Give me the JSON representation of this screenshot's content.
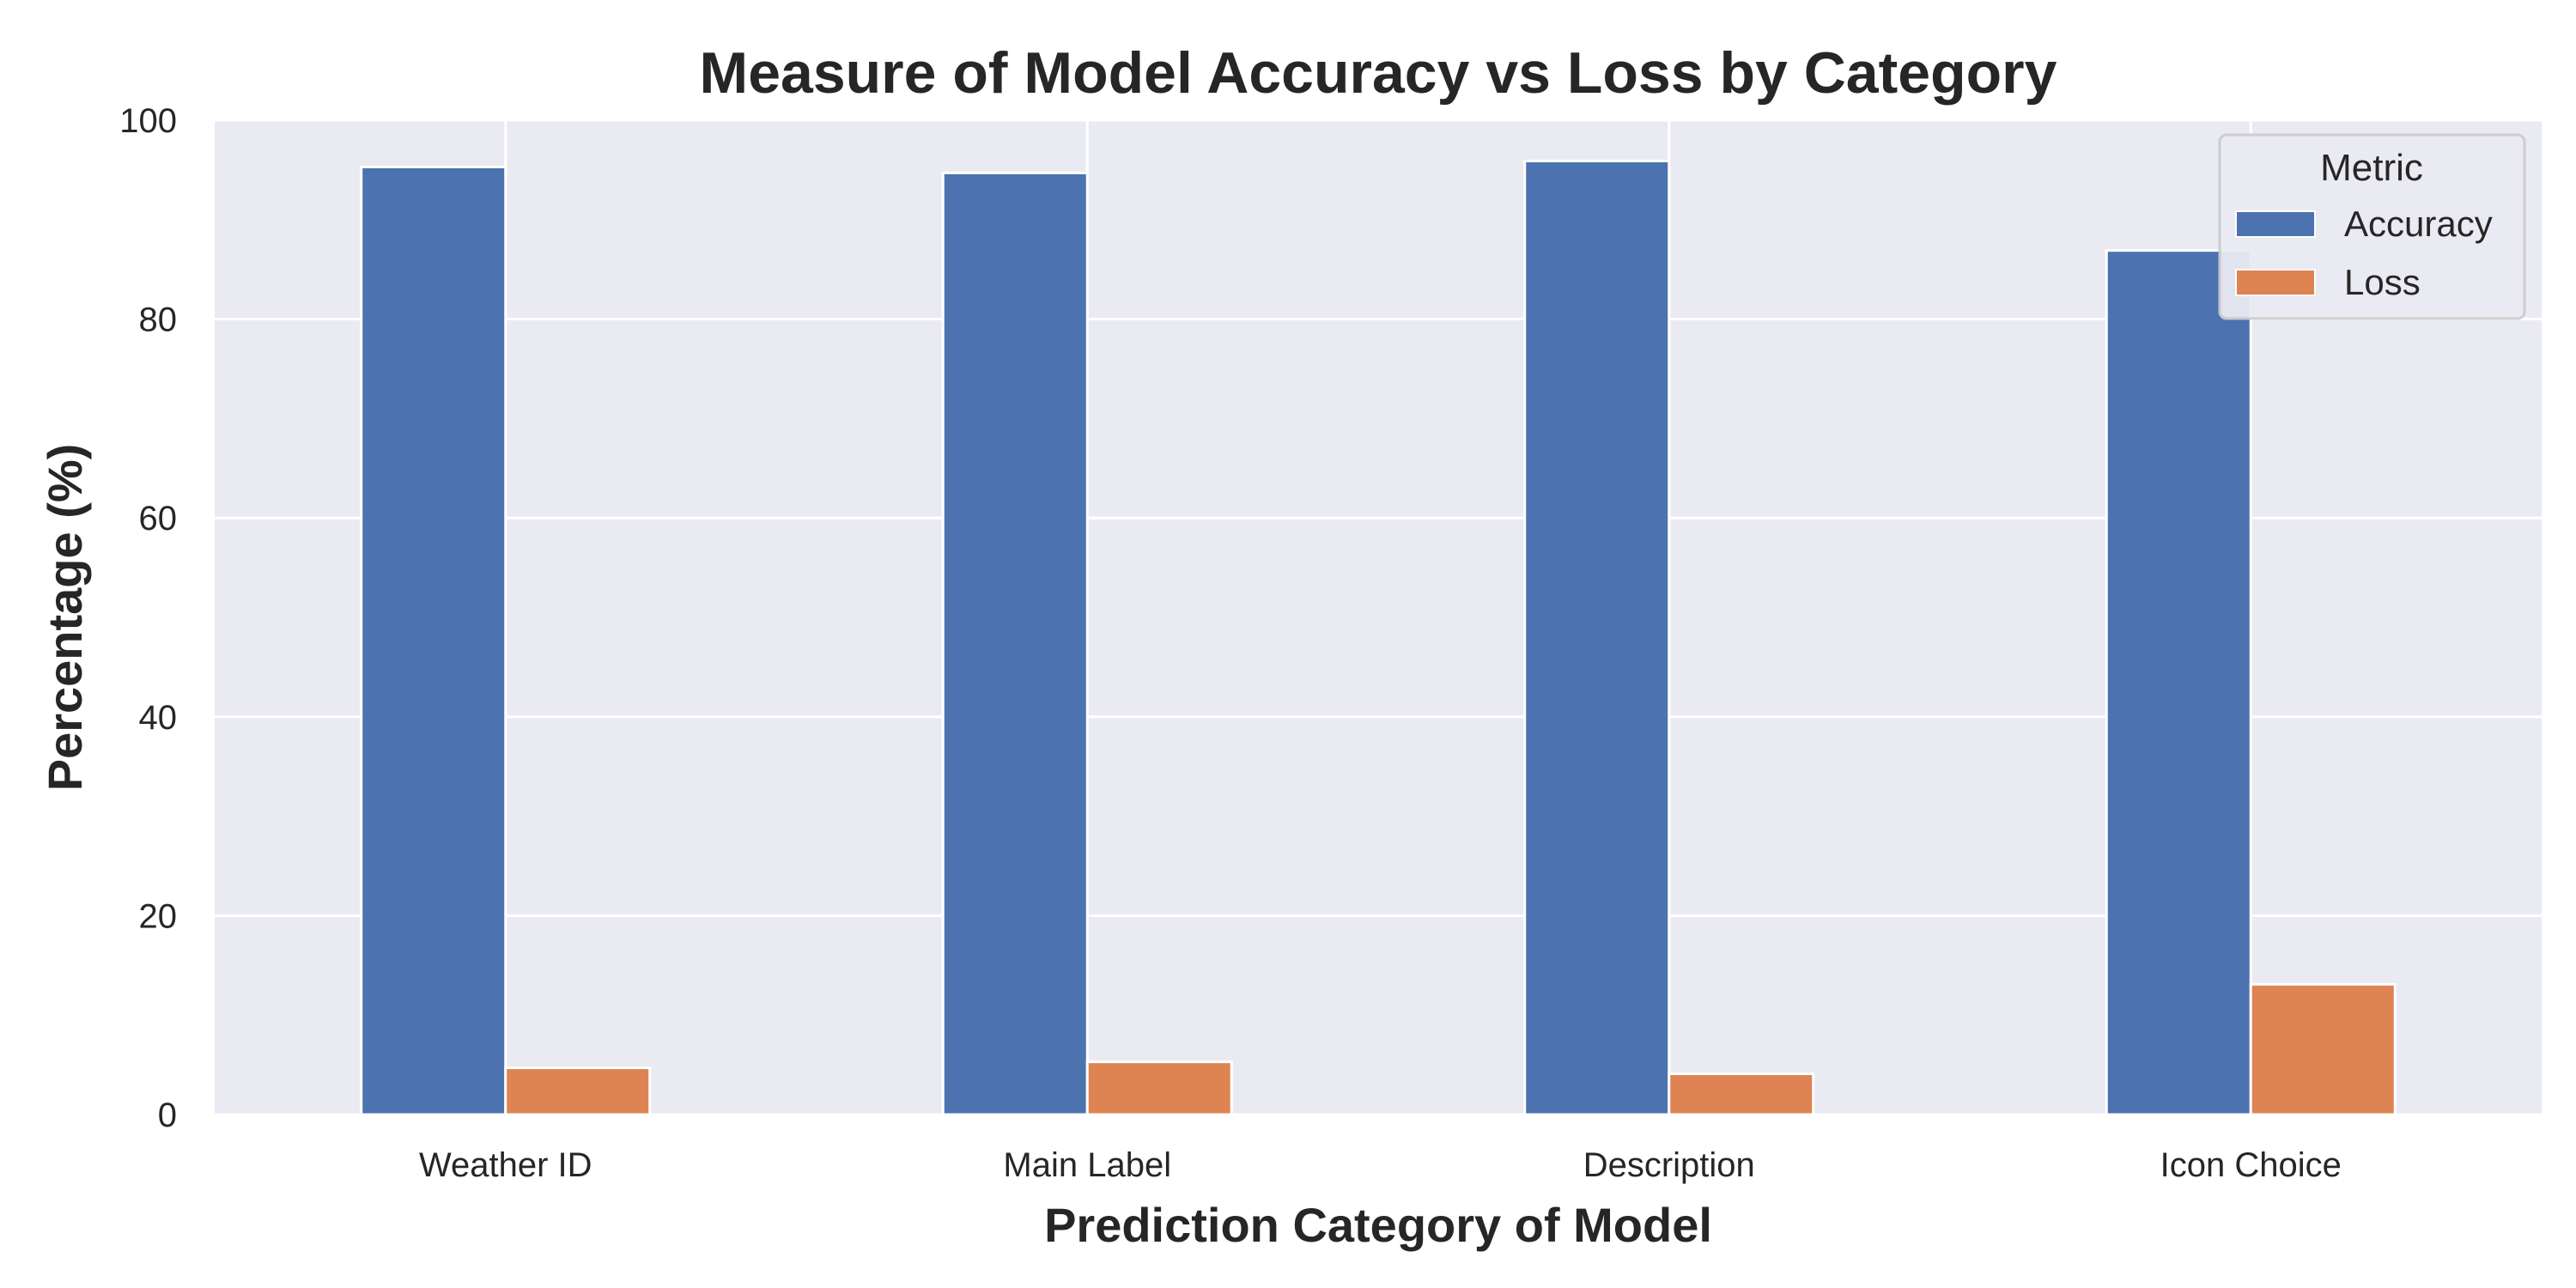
{
  "chart_data": {
    "type": "bar",
    "title": "Measure of Model Accuracy vs Loss by Category",
    "xlabel": "Prediction Category of Model",
    "ylabel": "Percentage (%)",
    "categories": [
      "Weather ID",
      "Main Label",
      "Description",
      "Icon Choice"
    ],
    "series": [
      {
        "name": "Accuracy",
        "color": "#4c72b0",
        "values": [
          95.3,
          94.7,
          95.9,
          86.9
        ]
      },
      {
        "name": "Loss",
        "color": "#dd8452",
        "values": [
          4.7,
          5.3,
          4.1,
          13.1
        ]
      }
    ],
    "ylim": [
      0,
      100
    ],
    "yticks": [
      0,
      20,
      40,
      60,
      80,
      100
    ],
    "grid": true,
    "legend": {
      "title": "Metric",
      "placement": "top-right"
    }
  }
}
